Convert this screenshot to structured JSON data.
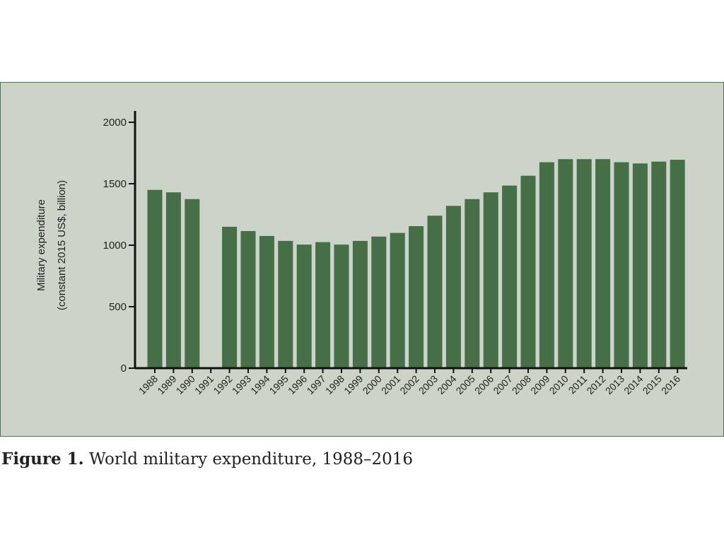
{
  "caption": {
    "label": "Figure 1.",
    "text": " World military expenditure, 1988–2016"
  },
  "chart_data": {
    "type": "bar",
    "title": "World military expenditure, 1988–2016",
    "xlabel": "",
    "ylabel": "Military expenditure",
    "ylabel2": "(constant 2015 US$, billion)",
    "ylim": [
      0,
      2000
    ],
    "yticks": [
      0,
      500,
      1000,
      1500,
      2000
    ],
    "grid": false,
    "color": "#466e47",
    "categories": [
      "1988",
      "1989",
      "1990",
      "1991",
      "1992",
      "1993",
      "1994",
      "1995",
      "1996",
      "1997",
      "1998",
      "1999",
      "2000",
      "2001",
      "2002",
      "2003",
      "2004",
      "2005",
      "2006",
      "2007",
      "2008",
      "2009",
      "2010",
      "2011",
      "2012",
      "2013",
      "2014",
      "2015",
      "2016"
    ],
    "values": [
      1450,
      1430,
      1375,
      null,
      1150,
      1115,
      1075,
      1035,
      1005,
      1025,
      1005,
      1035,
      1070,
      1100,
      1155,
      1240,
      1320,
      1375,
      1430,
      1485,
      1565,
      1675,
      1700,
      1700,
      1700,
      1675,
      1665,
      1680,
      1695
    ]
  }
}
